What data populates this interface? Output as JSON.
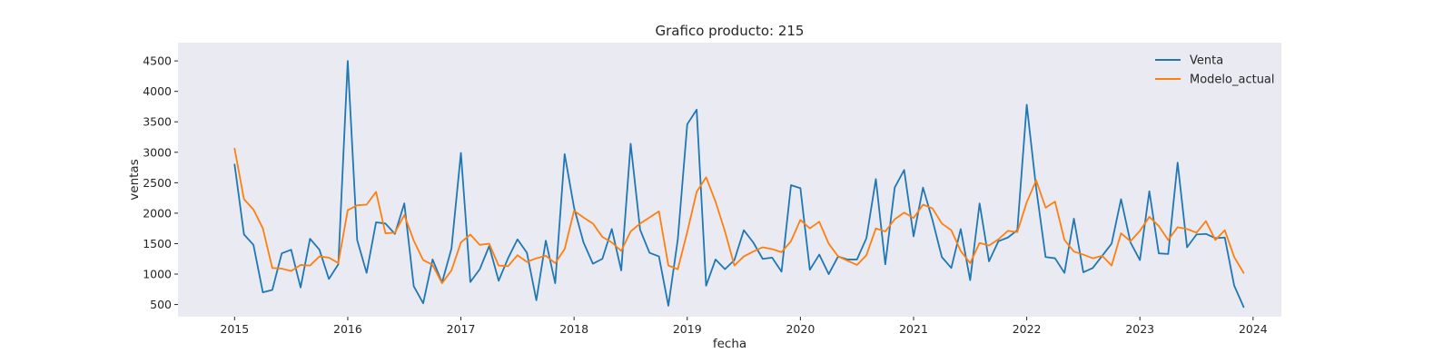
{
  "chart_data": {
    "type": "line",
    "title": "Grafico producto: 215",
    "xlabel": "fecha",
    "ylabel": "ventas",
    "x_start": "2015-01",
    "x_frequency": "monthly",
    "xlim": [
      "2014-07",
      "2024-04"
    ],
    "ylim": [
      300,
      4800
    ],
    "xticks": [
      "2015",
      "2016",
      "2017",
      "2018",
      "2019",
      "2020",
      "2021",
      "2022",
      "2023",
      "2024"
    ],
    "yticks": [
      500,
      1000,
      1500,
      2000,
      2500,
      3000,
      3500,
      4000,
      4500
    ],
    "grid": false,
    "legend_position": "top-right",
    "series": [
      {
        "name": "Venta",
        "color": "#1f77b4",
        "values": [
          2800,
          1650,
          1480,
          700,
          740,
          1340,
          1400,
          780,
          1580,
          1400,
          920,
          1160,
          4500,
          1560,
          1020,
          1850,
          1830,
          1660,
          2160,
          800,
          520,
          1240,
          860,
          1420,
          2990,
          870,
          1080,
          1460,
          890,
          1260,
          1570,
          1350,
          570,
          1550,
          850,
          2970,
          2090,
          1520,
          1170,
          1250,
          1740,
          1060,
          3140,
          1730,
          1350,
          1290,
          480,
          1570,
          3460,
          3700,
          810,
          1240,
          1080,
          1230,
          1720,
          1520,
          1250,
          1270,
          1040,
          2460,
          2410,
          1070,
          1320,
          1000,
          1290,
          1240,
          1240,
          1590,
          2560,
          1160,
          2420,
          2710,
          1620,
          2420,
          1890,
          1280,
          1100,
          1740,
          900,
          2160,
          1210,
          1540,
          1600,
          1720,
          3780,
          2410,
          1280,
          1260,
          1020,
          1910,
          1030,
          1100,
          1300,
          1500,
          2230,
          1520,
          1230,
          2360,
          1340,
          1330,
          2830,
          1440,
          1650,
          1660,
          1590,
          1600,
          810,
          460
        ]
      },
      {
        "name": "Modelo_actual",
        "color": "#ff7f0e",
        "values": [
          3060,
          2230,
          2060,
          1750,
          1100,
          1090,
          1050,
          1150,
          1140,
          1290,
          1270,
          1180,
          2050,
          2130,
          2140,
          2350,
          1670,
          1680,
          1970,
          1550,
          1230,
          1150,
          850,
          1060,
          1520,
          1650,
          1480,
          1500,
          1140,
          1130,
          1310,
          1200,
          1260,
          1300,
          1180,
          1410,
          2040,
          1930,
          1830,
          1610,
          1520,
          1380,
          1700,
          1830,
          1930,
          2030,
          1140,
          1080,
          1690,
          2350,
          2590,
          2190,
          1700,
          1140,
          1290,
          1370,
          1440,
          1410,
          1360,
          1540,
          1890,
          1750,
          1860,
          1500,
          1290,
          1220,
          1150,
          1310,
          1750,
          1700,
          1900,
          2010,
          1920,
          2140,
          2080,
          1830,
          1720,
          1380,
          1180,
          1510,
          1470,
          1570,
          1710,
          1690,
          2180,
          2540,
          2090,
          2190,
          1560,
          1370,
          1320,
          1260,
          1300,
          1140,
          1670,
          1540,
          1710,
          1940,
          1790,
          1560,
          1770,
          1740,
          1680,
          1870,
          1560,
          1720,
          1280,
          1020
        ]
      }
    ]
  }
}
